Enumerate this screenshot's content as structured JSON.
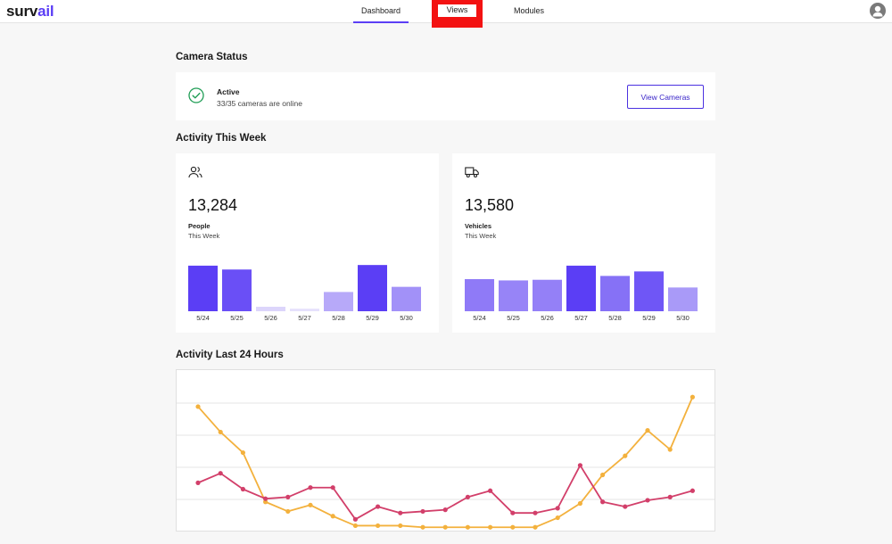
{
  "app": {
    "logo_prefix": "surv",
    "logo_accent": "ail"
  },
  "nav": {
    "tabs": [
      {
        "label": "Dashboard",
        "active": true
      },
      {
        "label": "Views",
        "active": false
      },
      {
        "label": "Modules",
        "active": false
      }
    ]
  },
  "camera_status": {
    "title": "Camera Status",
    "state": "Active",
    "detail": "33/35 cameras are online",
    "button_label": "View Cameras"
  },
  "activity_week": {
    "title": "Activity This Week",
    "people": {
      "value": "13,284",
      "label": "People",
      "period": "This Week",
      "icon": "people-icon"
    },
    "vehicles": {
      "value": "13,580",
      "label": "Vehicles",
      "period": "This Week",
      "icon": "truck-icon"
    }
  },
  "activity_24h": {
    "title": "Activity Last 24 Hours"
  },
  "colors": {
    "accent": "#5b3ef5",
    "success": "#1f9d55",
    "series_orange": "#f3b13d",
    "series_pink": "#d23f6a"
  },
  "chart_data": [
    {
      "type": "bar",
      "categories": [
        "5/24",
        "5/25",
        "5/26",
        "5/27",
        "5/28",
        "5/29",
        "5/30"
      ],
      "values": [
        71,
        65,
        7,
        4,
        30,
        72,
        38
      ],
      "colors": [
        "#5b3ef5",
        "#6a4ff6",
        "#dcd5fb",
        "#e6e1fc",
        "#b7a9f9",
        "#5b3ef5",
        "#a291f8"
      ]
    },
    {
      "type": "bar",
      "categories": [
        "5/24",
        "5/25",
        "5/26",
        "5/27",
        "5/28",
        "5/29",
        "5/30"
      ],
      "values": [
        50,
        48,
        49,
        71,
        55,
        62,
        37
      ],
      "colors": [
        "#8f7af7",
        "#9784f7",
        "#9480f7",
        "#5b3ef5",
        "#8671f6",
        "#6f56f6",
        "#a99af8"
      ]
    },
    {
      "type": "line",
      "grid": true,
      "ylim": [
        0,
        100
      ],
      "x": [
        0,
        1,
        2,
        3,
        4,
        5,
        6,
        7,
        8,
        9,
        10,
        11,
        12,
        13,
        14,
        15,
        16,
        17,
        18,
        19,
        20,
        21,
        22
      ],
      "series": [
        {
          "color": "#f3b13d",
          "values": [
            77,
            61,
            48,
            17,
            11,
            15,
            8,
            2,
            2,
            2,
            1,
            1,
            1,
            1,
            1,
            1,
            7,
            16,
            34,
            46,
            62,
            50,
            83
          ]
        },
        {
          "color": "#d23f6a",
          "values": [
            29,
            35,
            25,
            19,
            20,
            26,
            26,
            6,
            14,
            10,
            11,
            12,
            20,
            24,
            10,
            10,
            13,
            40,
            17,
            14,
            18,
            20,
            24
          ]
        }
      ]
    }
  ]
}
